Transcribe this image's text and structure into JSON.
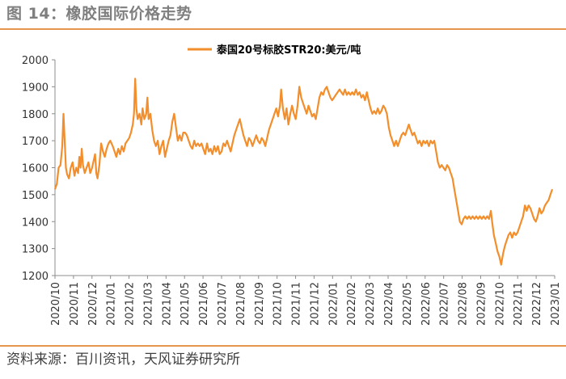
{
  "figure": {
    "title": "图 14：橡胶国际价格走势",
    "source": "资料来源：百川资讯，天风证券研究所"
  },
  "chart_data": {
    "type": "line",
    "series_name": "泰国20号标胶STR20:美元/吨",
    "color": "#f28e2b",
    "ylim": [
      1200,
      2000
    ],
    "yticks": [
      1200,
      1300,
      1400,
      1500,
      1600,
      1700,
      1800,
      1900,
      2000
    ],
    "xlim": [
      "2020-10-01",
      "2023-01-01"
    ],
    "xtick_labels": [
      "2020/10",
      "2020/11",
      "2020/12",
      "2021/01",
      "2021/02",
      "2021/03",
      "2021/04",
      "2021/05",
      "2021/06",
      "2021/07",
      "2021/08",
      "2021/09",
      "2021/10",
      "2021/11",
      "2021/12",
      "2022/01",
      "2022/02",
      "2022/03",
      "2022/04",
      "2022/05",
      "2022/06",
      "2022/07",
      "2022/08",
      "2022/09",
      "2022/10",
      "2022/11",
      "2022/12",
      "2023/01"
    ],
    "legend_position": "top-center",
    "grid": false,
    "points": [
      [
        "2020-10-01",
        1520
      ],
      [
        "2020-10-04",
        1540
      ],
      [
        "2020-10-07",
        1600
      ],
      [
        "2020-10-10",
        1610
      ],
      [
        "2020-10-13",
        1680
      ],
      [
        "2020-10-15",
        1800
      ],
      [
        "2020-10-17",
        1700
      ],
      [
        "2020-10-19",
        1600
      ],
      [
        "2020-10-21",
        1575
      ],
      [
        "2020-10-24",
        1560
      ],
      [
        "2020-10-27",
        1600
      ],
      [
        "2020-10-30",
        1620
      ],
      [
        "2020-11-02",
        1570
      ],
      [
        "2020-11-05",
        1600
      ],
      [
        "2020-11-08",
        1580
      ],
      [
        "2020-11-10",
        1640
      ],
      [
        "2020-11-12",
        1600
      ],
      [
        "2020-11-14",
        1670
      ],
      [
        "2020-11-16",
        1610
      ],
      [
        "2020-11-19",
        1580
      ],
      [
        "2020-11-22",
        1600
      ],
      [
        "2020-11-25",
        1620
      ],
      [
        "2020-11-28",
        1580
      ],
      [
        "2020-12-01",
        1600
      ],
      [
        "2020-12-04",
        1630
      ],
      [
        "2020-12-06",
        1650
      ],
      [
        "2020-12-08",
        1580
      ],
      [
        "2020-12-10",
        1560
      ],
      [
        "2020-12-13",
        1610
      ],
      [
        "2020-12-16",
        1690
      ],
      [
        "2020-12-19",
        1660
      ],
      [
        "2020-12-22",
        1640
      ],
      [
        "2020-12-25",
        1670
      ],
      [
        "2020-12-28",
        1690
      ],
      [
        "2020-12-31",
        1700
      ],
      [
        "2021-01-04",
        1680
      ],
      [
        "2021-01-07",
        1660
      ],
      [
        "2021-01-10",
        1640
      ],
      [
        "2021-01-13",
        1670
      ],
      [
        "2021-01-16",
        1650
      ],
      [
        "2021-01-19",
        1680
      ],
      [
        "2021-01-22",
        1660
      ],
      [
        "2021-01-25",
        1690
      ],
      [
        "2021-01-28",
        1700
      ],
      [
        "2021-01-31",
        1710
      ],
      [
        "2021-02-03",
        1730
      ],
      [
        "2021-02-06",
        1760
      ],
      [
        "2021-02-08",
        1800
      ],
      [
        "2021-02-10",
        1930
      ],
      [
        "2021-02-12",
        1820
      ],
      [
        "2021-02-14",
        1780
      ],
      [
        "2021-02-17",
        1800
      ],
      [
        "2021-02-20",
        1760
      ],
      [
        "2021-02-22",
        1820
      ],
      [
        "2021-02-25",
        1780
      ],
      [
        "2021-02-28",
        1800
      ],
      [
        "2021-03-02",
        1860
      ],
      [
        "2021-03-04",
        1780
      ],
      [
        "2021-03-07",
        1800
      ],
      [
        "2021-03-10",
        1740
      ],
      [
        "2021-03-13",
        1700
      ],
      [
        "2021-03-16",
        1680
      ],
      [
        "2021-03-19",
        1700
      ],
      [
        "2021-03-22",
        1650
      ],
      [
        "2021-03-25",
        1680
      ],
      [
        "2021-03-28",
        1700
      ],
      [
        "2021-03-31",
        1640
      ],
      [
        "2021-04-03",
        1670
      ],
      [
        "2021-04-06",
        1700
      ],
      [
        "2021-04-09",
        1720
      ],
      [
        "2021-04-12",
        1770
      ],
      [
        "2021-04-15",
        1800
      ],
      [
        "2021-04-18",
        1750
      ],
      [
        "2021-04-21",
        1700
      ],
      [
        "2021-04-24",
        1720
      ],
      [
        "2021-04-27",
        1700
      ],
      [
        "2021-04-30",
        1730
      ],
      [
        "2021-05-03",
        1730
      ],
      [
        "2021-05-06",
        1720
      ],
      [
        "2021-05-09",
        1700
      ],
      [
        "2021-05-12",
        1680
      ],
      [
        "2021-05-15",
        1670
      ],
      [
        "2021-05-18",
        1700
      ],
      [
        "2021-05-21",
        1680
      ],
      [
        "2021-05-24",
        1690
      ],
      [
        "2021-05-27",
        1680
      ],
      [
        "2021-05-30",
        1690
      ],
      [
        "2021-06-02",
        1670
      ],
      [
        "2021-06-05",
        1650
      ],
      [
        "2021-06-08",
        1690
      ],
      [
        "2021-06-11",
        1660
      ],
      [
        "2021-06-14",
        1670
      ],
      [
        "2021-06-17",
        1650
      ],
      [
        "2021-06-20",
        1680
      ],
      [
        "2021-06-23",
        1660
      ],
      [
        "2021-06-26",
        1680
      ],
      [
        "2021-06-29",
        1650
      ],
      [
        "2021-07-02",
        1660
      ],
      [
        "2021-07-05",
        1690
      ],
      [
        "2021-07-08",
        1680
      ],
      [
        "2021-07-11",
        1700
      ],
      [
        "2021-07-14",
        1680
      ],
      [
        "2021-07-17",
        1660
      ],
      [
        "2021-07-20",
        1690
      ],
      [
        "2021-07-23",
        1720
      ],
      [
        "2021-07-26",
        1740
      ],
      [
        "2021-07-29",
        1760
      ],
      [
        "2021-08-01",
        1780
      ],
      [
        "2021-08-04",
        1750
      ],
      [
        "2021-08-07",
        1720
      ],
      [
        "2021-08-10",
        1700
      ],
      [
        "2021-08-13",
        1680
      ],
      [
        "2021-08-16",
        1710
      ],
      [
        "2021-08-19",
        1700
      ],
      [
        "2021-08-22",
        1680
      ],
      [
        "2021-08-25",
        1700
      ],
      [
        "2021-08-28",
        1720
      ],
      [
        "2021-08-31",
        1700
      ],
      [
        "2021-09-03",
        1690
      ],
      [
        "2021-09-06",
        1710
      ],
      [
        "2021-09-09",
        1700
      ],
      [
        "2021-09-12",
        1680
      ],
      [
        "2021-09-15",
        1710
      ],
      [
        "2021-09-18",
        1740
      ],
      [
        "2021-09-21",
        1760
      ],
      [
        "2021-09-24",
        1780
      ],
      [
        "2021-09-27",
        1800
      ],
      [
        "2021-09-30",
        1820
      ],
      [
        "2021-10-03",
        1790
      ],
      [
        "2021-10-06",
        1830
      ],
      [
        "2021-10-08",
        1890
      ],
      [
        "2021-10-11",
        1820
      ],
      [
        "2021-10-14",
        1780
      ],
      [
        "2021-10-17",
        1820
      ],
      [
        "2021-10-20",
        1760
      ],
      [
        "2021-10-23",
        1800
      ],
      [
        "2021-10-26",
        1830
      ],
      [
        "2021-10-29",
        1800
      ],
      [
        "2021-11-01",
        1780
      ],
      [
        "2021-11-04",
        1830
      ],
      [
        "2021-11-07",
        1900
      ],
      [
        "2021-11-10",
        1860
      ],
      [
        "2021-11-13",
        1840
      ],
      [
        "2021-11-16",
        1820
      ],
      [
        "2021-11-19",
        1800
      ],
      [
        "2021-11-22",
        1830
      ],
      [
        "2021-11-25",
        1810
      ],
      [
        "2021-11-28",
        1790
      ],
      [
        "2021-12-01",
        1800
      ],
      [
        "2021-12-04",
        1780
      ],
      [
        "2021-12-07",
        1820
      ],
      [
        "2021-12-10",
        1860
      ],
      [
        "2021-12-13",
        1880
      ],
      [
        "2021-12-16",
        1870
      ],
      [
        "2021-12-19",
        1890
      ],
      [
        "2021-12-22",
        1900
      ],
      [
        "2021-12-25",
        1880
      ],
      [
        "2021-12-28",
        1860
      ],
      [
        "2021-12-31",
        1850
      ],
      [
        "2022-01-03",
        1860
      ],
      [
        "2022-01-06",
        1870
      ],
      [
        "2022-01-09",
        1880
      ],
      [
        "2022-01-12",
        1890
      ],
      [
        "2022-01-15",
        1880
      ],
      [
        "2022-01-18",
        1870
      ],
      [
        "2022-01-21",
        1890
      ],
      [
        "2022-01-24",
        1870
      ],
      [
        "2022-01-27",
        1880
      ],
      [
        "2022-01-30",
        1870
      ],
      [
        "2022-02-02",
        1880
      ],
      [
        "2022-02-05",
        1870
      ],
      [
        "2022-02-08",
        1890
      ],
      [
        "2022-02-11",
        1870
      ],
      [
        "2022-02-14",
        1880
      ],
      [
        "2022-02-17",
        1860
      ],
      [
        "2022-02-20",
        1870
      ],
      [
        "2022-02-23",
        1850
      ],
      [
        "2022-02-26",
        1880
      ],
      [
        "2022-03-01",
        1850
      ],
      [
        "2022-03-04",
        1820
      ],
      [
        "2022-03-07",
        1800
      ],
      [
        "2022-03-10",
        1810
      ],
      [
        "2022-03-13",
        1800
      ],
      [
        "2022-03-16",
        1820
      ],
      [
        "2022-03-19",
        1800
      ],
      [
        "2022-03-22",
        1810
      ],
      [
        "2022-03-25",
        1830
      ],
      [
        "2022-03-28",
        1820
      ],
      [
        "2022-03-31",
        1800
      ],
      [
        "2022-04-03",
        1750
      ],
      [
        "2022-04-06",
        1720
      ],
      [
        "2022-04-09",
        1700
      ],
      [
        "2022-04-12",
        1680
      ],
      [
        "2022-04-15",
        1700
      ],
      [
        "2022-04-18",
        1680
      ],
      [
        "2022-04-21",
        1700
      ],
      [
        "2022-04-24",
        1720
      ],
      [
        "2022-04-27",
        1730
      ],
      [
        "2022-04-30",
        1720
      ],
      [
        "2022-05-03",
        1740
      ],
      [
        "2022-05-06",
        1760
      ],
      [
        "2022-05-09",
        1740
      ],
      [
        "2022-05-12",
        1720
      ],
      [
        "2022-05-15",
        1730
      ],
      [
        "2022-05-18",
        1710
      ],
      [
        "2022-05-21",
        1690
      ],
      [
        "2022-05-24",
        1700
      ],
      [
        "2022-05-27",
        1680
      ],
      [
        "2022-05-30",
        1700
      ],
      [
        "2022-06-02",
        1690
      ],
      [
        "2022-06-05",
        1700
      ],
      [
        "2022-06-08",
        1680
      ],
      [
        "2022-06-11",
        1700
      ],
      [
        "2022-06-14",
        1690
      ],
      [
        "2022-06-17",
        1700
      ],
      [
        "2022-06-20",
        1660
      ],
      [
        "2022-06-23",
        1620
      ],
      [
        "2022-06-26",
        1600
      ],
      [
        "2022-06-29",
        1610
      ],
      [
        "2022-07-02",
        1600
      ],
      [
        "2022-07-05",
        1590
      ],
      [
        "2022-07-08",
        1610
      ],
      [
        "2022-07-11",
        1600
      ],
      [
        "2022-07-14",
        1580
      ],
      [
        "2022-07-17",
        1560
      ],
      [
        "2022-07-20",
        1520
      ],
      [
        "2022-07-23",
        1480
      ],
      [
        "2022-07-26",
        1440
      ],
      [
        "2022-07-29",
        1400
      ],
      [
        "2022-08-01",
        1390
      ],
      [
        "2022-08-04",
        1410
      ],
      [
        "2022-08-07",
        1420
      ],
      [
        "2022-08-10",
        1410
      ],
      [
        "2022-08-13",
        1420
      ],
      [
        "2022-08-16",
        1410
      ],
      [
        "2022-08-19",
        1420
      ],
      [
        "2022-08-22",
        1410
      ],
      [
        "2022-08-25",
        1420
      ],
      [
        "2022-08-28",
        1410
      ],
      [
        "2022-08-31",
        1420
      ],
      [
        "2022-09-03",
        1410
      ],
      [
        "2022-09-06",
        1420
      ],
      [
        "2022-09-09",
        1410
      ],
      [
        "2022-09-12",
        1420
      ],
      [
        "2022-09-15",
        1410
      ],
      [
        "2022-09-18",
        1440
      ],
      [
        "2022-09-20",
        1400
      ],
      [
        "2022-09-23",
        1350
      ],
      [
        "2022-09-26",
        1320
      ],
      [
        "2022-09-29",
        1290
      ],
      [
        "2022-10-02",
        1270
      ],
      [
        "2022-10-05",
        1240
      ],
      [
        "2022-10-08",
        1280
      ],
      [
        "2022-10-11",
        1310
      ],
      [
        "2022-10-14",
        1330
      ],
      [
        "2022-10-17",
        1350
      ],
      [
        "2022-10-20",
        1360
      ],
      [
        "2022-10-23",
        1340
      ],
      [
        "2022-10-26",
        1360
      ],
      [
        "2022-10-29",
        1350
      ],
      [
        "2022-11-01",
        1360
      ],
      [
        "2022-11-04",
        1380
      ],
      [
        "2022-11-07",
        1400
      ],
      [
        "2022-11-10",
        1420
      ],
      [
        "2022-11-13",
        1460
      ],
      [
        "2022-11-16",
        1440
      ],
      [
        "2022-11-19",
        1460
      ],
      [
        "2022-11-22",
        1450
      ],
      [
        "2022-11-25",
        1430
      ],
      [
        "2022-11-28",
        1410
      ],
      [
        "2022-12-01",
        1400
      ],
      [
        "2022-12-04",
        1420
      ],
      [
        "2022-12-07",
        1450
      ],
      [
        "2022-12-10",
        1430
      ],
      [
        "2022-12-13",
        1440
      ],
      [
        "2022-12-16",
        1460
      ],
      [
        "2022-12-19",
        1470
      ],
      [
        "2022-12-22",
        1480
      ],
      [
        "2022-12-25",
        1500
      ],
      [
        "2022-12-28",
        1520
      ]
    ]
  }
}
